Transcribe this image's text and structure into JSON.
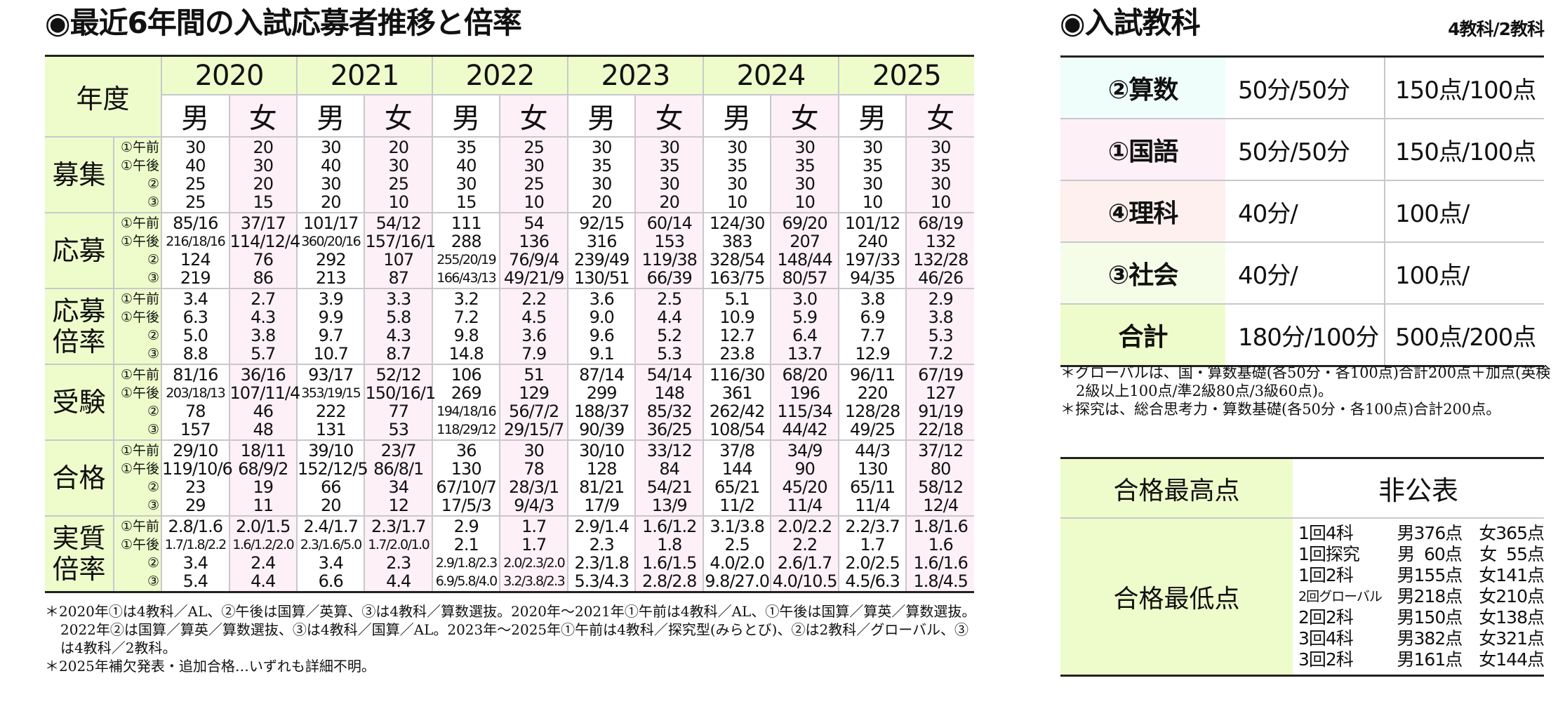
{
  "left_title": "◉最近6年間の入試応募者推移と倍率",
  "right_title": "◉入試教科",
  "right_subtitle": "4教科/2教科",
  "table": {
    "year_label": "年度",
    "years": [
      "2020",
      "2021",
      "2022",
      "2023",
      "2024",
      "2025"
    ],
    "male": "男",
    "female": "女",
    "sub_labels": [
      "①午前",
      "①午後",
      "②",
      "③"
    ],
    "categories": [
      {
        "label": "募集",
        "cells": [
          [
            "30",
            "40",
            "25",
            "25"
          ],
          [
            "20",
            "30",
            "20",
            "15"
          ],
          [
            "30",
            "40",
            "30",
            "20"
          ],
          [
            "20",
            "30",
            "25",
            "10"
          ],
          [
            "35",
            "40",
            "30",
            "15"
          ],
          [
            "25",
            "30",
            "25",
            "10"
          ],
          [
            "30",
            "35",
            "30",
            "20"
          ],
          [
            "30",
            "35",
            "30",
            "20"
          ],
          [
            "30",
            "35",
            "30",
            "10"
          ],
          [
            "30",
            "35",
            "30",
            "10"
          ],
          [
            "30",
            "35",
            "30",
            "10"
          ],
          [
            "30",
            "35",
            "30",
            "10"
          ]
        ]
      },
      {
        "label": "応募",
        "cells": [
          [
            "85/16",
            "216/18/16",
            "124",
            "219"
          ],
          [
            "37/17",
            "114/12/4",
            "76",
            "86"
          ],
          [
            "101/17",
            "360/20/16",
            "292",
            "213"
          ],
          [
            "54/12",
            "157/16/1",
            "107",
            "87"
          ],
          [
            "111",
            "288",
            "255/20/19",
            "166/43/13"
          ],
          [
            "54",
            "136",
            "76/9/4",
            "49/21/9"
          ],
          [
            "92/15",
            "316",
            "239/49",
            "130/51"
          ],
          [
            "60/14",
            "153",
            "119/38",
            "66/39"
          ],
          [
            "124/30",
            "383",
            "328/54",
            "163/75"
          ],
          [
            "69/20",
            "207",
            "148/44",
            "80/57"
          ],
          [
            "101/12",
            "240",
            "197/33",
            "94/35"
          ],
          [
            "68/19",
            "132",
            "132/28",
            "46/26"
          ]
        ]
      },
      {
        "label": "応募倍率",
        "label_lines": [
          "応募",
          "倍率"
        ],
        "cells": [
          [
            "3.4",
            "6.3",
            "5.0",
            "8.8"
          ],
          [
            "2.7",
            "4.3",
            "3.8",
            "5.7"
          ],
          [
            "3.9",
            "9.9",
            "9.7",
            "10.7"
          ],
          [
            "3.3",
            "5.8",
            "4.3",
            "8.7"
          ],
          [
            "3.2",
            "7.2",
            "9.8",
            "14.8"
          ],
          [
            "2.2",
            "4.5",
            "3.6",
            "7.9"
          ],
          [
            "3.6",
            "9.0",
            "9.6",
            "9.1"
          ],
          [
            "2.5",
            "4.4",
            "5.2",
            "5.3"
          ],
          [
            "5.1",
            "10.9",
            "12.7",
            "23.8"
          ],
          [
            "3.0",
            "5.9",
            "6.4",
            "13.7"
          ],
          [
            "3.8",
            "6.9",
            "7.7",
            "12.9"
          ],
          [
            "2.9",
            "3.8",
            "5.3",
            "7.2"
          ]
        ]
      },
      {
        "label": "受験",
        "cells": [
          [
            "81/16",
            "203/18/13",
            "78",
            "157"
          ],
          [
            "36/16",
            "107/11/4",
            "46",
            "48"
          ],
          [
            "93/17",
            "353/19/15",
            "222",
            "131"
          ],
          [
            "52/12",
            "150/16/1",
            "77",
            "53"
          ],
          [
            "106",
            "269",
            "194/18/16",
            "118/29/12"
          ],
          [
            "51",
            "129",
            "56/7/2",
            "29/15/7"
          ],
          [
            "87/14",
            "299",
            "188/37",
            "90/39"
          ],
          [
            "54/14",
            "148",
            "85/32",
            "36/25"
          ],
          [
            "116/30",
            "361",
            "262/42",
            "108/54"
          ],
          [
            "68/20",
            "196",
            "115/34",
            "44/42"
          ],
          [
            "96/11",
            "220",
            "128/28",
            "49/25"
          ],
          [
            "67/19",
            "127",
            "91/19",
            "22/18"
          ]
        ]
      },
      {
        "label": "合格",
        "cells": [
          [
            "29/10",
            "119/10/6",
            "23",
            "29"
          ],
          [
            "18/11",
            "68/9/2",
            "19",
            "11"
          ],
          [
            "39/10",
            "152/12/5",
            "66",
            "20"
          ],
          [
            "23/7",
            "86/8/1",
            "34",
            "12"
          ],
          [
            "36",
            "130",
            "67/10/7",
            "17/5/3"
          ],
          [
            "30",
            "78",
            "28/3/1",
            "9/4/3"
          ],
          [
            "30/10",
            "128",
            "81/21",
            "17/9"
          ],
          [
            "33/12",
            "84",
            "54/21",
            "13/9"
          ],
          [
            "37/8",
            "144",
            "65/21",
            "11/2"
          ],
          [
            "34/9",
            "90",
            "45/20",
            "11/4"
          ],
          [
            "44/3",
            "130",
            "65/11",
            "11/4"
          ],
          [
            "37/12",
            "80",
            "58/12",
            "12/4"
          ]
        ]
      },
      {
        "label": "実質倍率",
        "label_lines": [
          "実質",
          "倍率"
        ],
        "cells": [
          [
            "2.8/1.6",
            "1.7/1.8/2.2",
            "3.4",
            "5.4"
          ],
          [
            "2.0/1.5",
            "1.6/1.2/2.0",
            "2.4",
            "4.4"
          ],
          [
            "2.4/1.7",
            "2.3/1.6/5.0",
            "3.4",
            "6.6"
          ],
          [
            "2.3/1.7",
            "1.7/2.0/1.0",
            "2.3",
            "4.4"
          ],
          [
            "2.9",
            "2.1",
            "2.9/1.8/2.3",
            "6.9/5.8/4.0"
          ],
          [
            "1.7",
            "1.7",
            "2.0/2.3/2.0",
            "3.2/3.8/2.3"
          ],
          [
            "2.9/1.4",
            "2.3",
            "2.3/1.8",
            "5.3/4.3"
          ],
          [
            "1.6/1.2",
            "1.8",
            "1.6/1.5",
            "2.8/2.8"
          ],
          [
            "3.1/3.8",
            "2.5",
            "4.0/2.0",
            "9.8/27.0"
          ],
          [
            "2.0/2.2",
            "2.2",
            "2.6/1.7",
            "4.0/10.5"
          ],
          [
            "2.2/3.7",
            "1.7",
            "2.0/2.5",
            "4.5/6.3"
          ],
          [
            "1.8/1.6",
            "1.6",
            "1.6/1.6",
            "1.8/4.5"
          ]
        ]
      }
    ]
  },
  "left_notes": [
    "＊2020年①は4教科／AL、②午後は国算／英算、③は4教科／算数選抜。2020年～2021年①午前は4教科／AL、①午後は国算／算英／算数選抜。2022年②は国算／算英／算数選抜、③は4教科／国算／AL。2023年～2025年①午前は4教科／探究型(みらとび)、②は2教科／グローバル、③は4教科／2教科。",
    "＊2025年補欠発表・追加合格…いずれも詳細不明。"
  ],
  "subjects": [
    {
      "name": "②算数",
      "time": "50分/50分",
      "points": "150点/100点",
      "color": "#effefa"
    },
    {
      "name": "①国語",
      "time": "50分/50分",
      "points": "150点/100点",
      "color": "#fdf0f6"
    },
    {
      "name": "④理科",
      "time": "40分/",
      "points": "100点/",
      "color": "#fdf0ee"
    },
    {
      "name": "③社会",
      "time": "40分/",
      "points": "100点/",
      "color": "#f5fde8"
    },
    {
      "name": "合計",
      "time": "180分/100分",
      "points": "500点/200点",
      "color": "#eefccb"
    }
  ],
  "right_notes": [
    "＊グローバルは、国・算数基礎(各50分・各100点)合計200点＋加点(英検2級以上100点/準2級80点/3級60点)。",
    "＊探究は、総合思考力・算数基礎(各50分・各100点)合計200点。"
  ],
  "scores": {
    "max_label": "合格最高点",
    "max_value": "非公表",
    "min_label": "合格最低点",
    "min_rows": [
      {
        "exam": "1回4科",
        "male": "男376点",
        "female": "女365点"
      },
      {
        "exam": "1回探究",
        "male": "男  60点",
        "female": "女  55点"
      },
      {
        "exam": "1回2科",
        "male": "男155点",
        "female": "女141点"
      },
      {
        "exam": "2回グローバル",
        "male": "男218点",
        "female": "女210点"
      },
      {
        "exam": "2回2科",
        "male": "男150点",
        "female": "女138点"
      },
      {
        "exam": "3回4科",
        "male": "男382点",
        "female": "女321点"
      },
      {
        "exam": "3回2科",
        "male": "男161点",
        "female": "女144点"
      }
    ]
  }
}
